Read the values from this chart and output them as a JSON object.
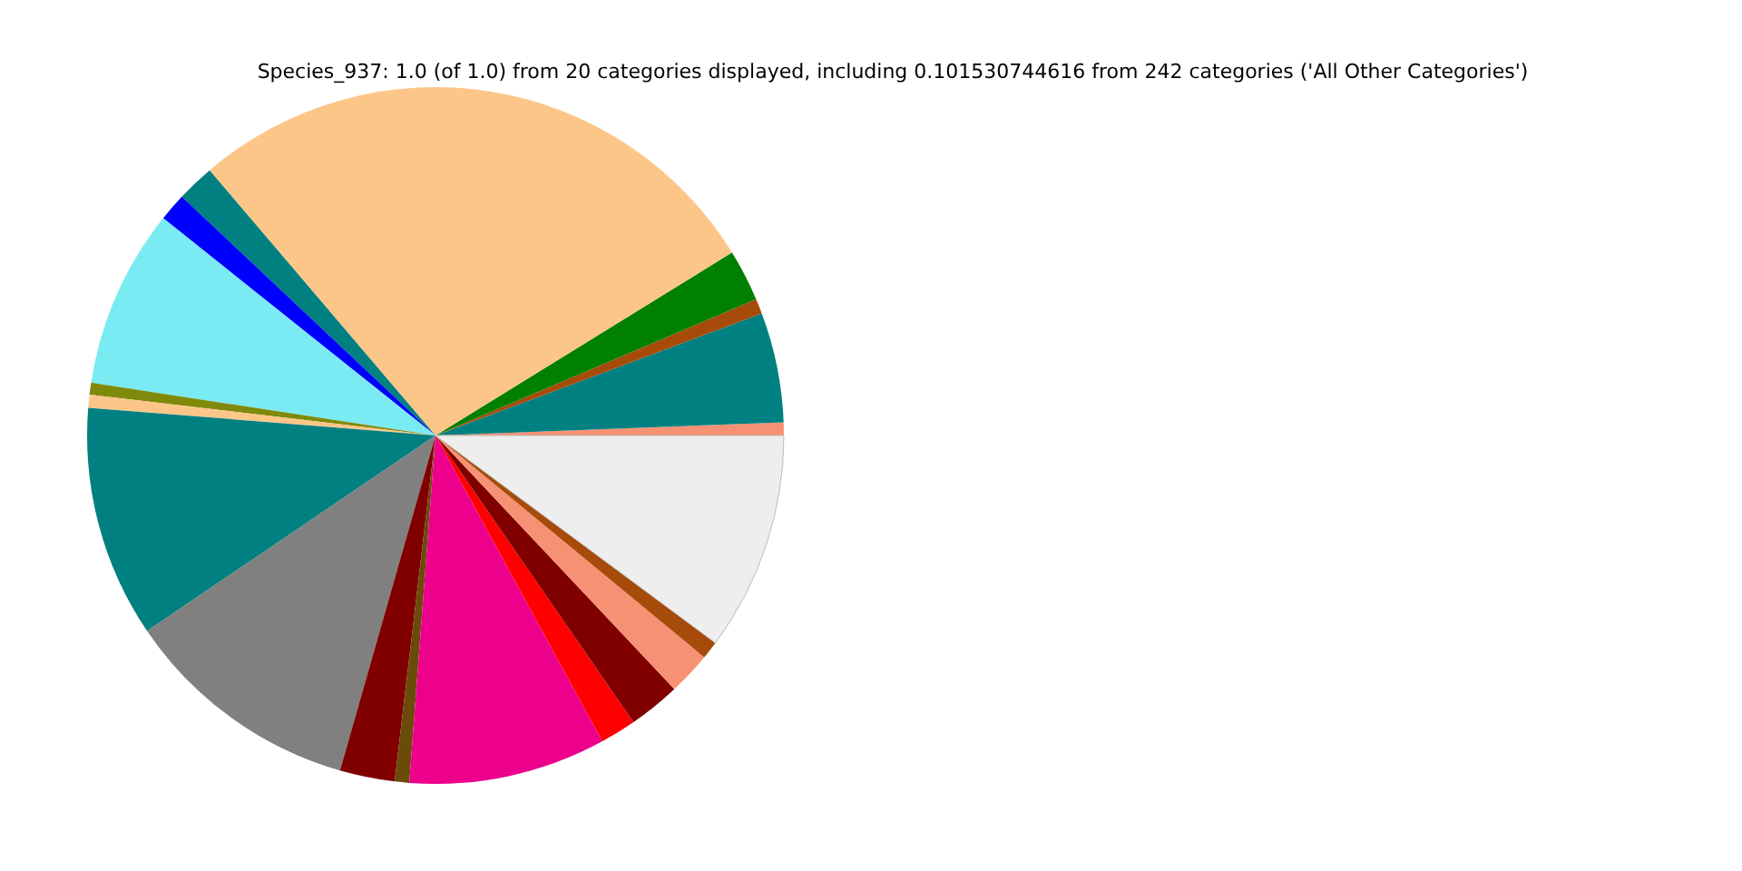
{
  "chart_data": {
    "type": "pie",
    "title": "Species_937: 1.0 (of 1.0) from 20 categories displayed, including 0.101530744616 from 242 categories ('All Other Categories')",
    "categories": [
      null,
      null,
      null,
      null,
      null,
      null,
      null,
      null,
      null,
      null,
      null,
      null,
      null,
      null,
      null,
      null,
      null,
      null,
      null,
      null
    ],
    "values": [
      0.6,
      5.1,
      0.7,
      2.4,
      27.43,
      1.75,
      1.3,
      8.3,
      0.55,
      0.6,
      10.75,
      11.1,
      2.55,
      0.67,
      9.15,
      1.67,
      2.4,
      2.0,
      0.83,
      10.15
    ],
    "colors": [
      "#f79174",
      "#008080",
      "#a64b0a",
      "#008000",
      "#fdc689",
      "#008080",
      "#0000ff",
      "#7aebf2",
      "#7f8a0a",
      "#fdc689",
      "#008080",
      "#808080",
      "#800000",
      "#6b4b0a",
      "#ec008c",
      "#ff0000",
      "#800000",
      "#f79174",
      "#a64b0a",
      "#eeeeee"
    ],
    "legend": false
  }
}
